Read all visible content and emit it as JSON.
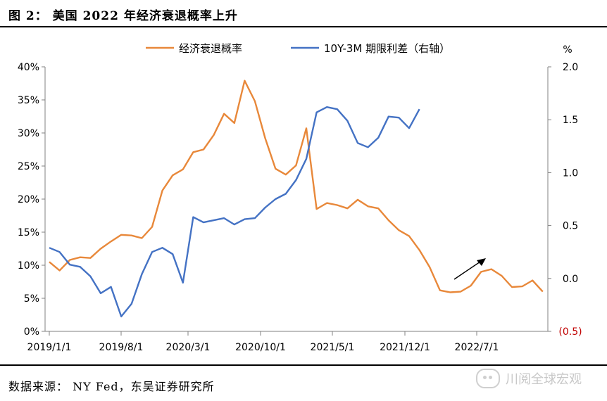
{
  "title": "图 2：  美国 2022 年经济衰退概率上升",
  "source": "数据来源：  NY Fed，东吴证券研究所",
  "watermark": "川阅全球宏观",
  "colors": {
    "recession": "#E8883A",
    "spread": "#4472C4",
    "negative_label": "#C00000"
  },
  "chart_data": {
    "type": "line",
    "x_ticks": [
      "2019/1/1",
      "2019/8/1",
      "2020/3/1",
      "2020/10/1",
      "2021/5/1",
      "2021/12/1",
      "2022/7/1"
    ],
    "left_axis": {
      "ylim": [
        0,
        40
      ],
      "ticks": [
        "0%",
        "5%",
        "10%",
        "15%",
        "20%",
        "25%",
        "30%",
        "35%",
        "40%"
      ]
    },
    "right_axis": {
      "unit": "%",
      "ylim": [
        -0.5,
        2.0
      ],
      "ticks": [
        "(0.5)",
        "0.0",
        "0.5",
        "1.0",
        "1.5",
        "2.0"
      ]
    },
    "legend": {
      "position": "top"
    },
    "series": [
      {
        "name": "经济衰退概率",
        "axis": "left",
        "values": [
          10.5,
          9.2,
          10.8,
          11.2,
          11.1,
          12.5,
          13.6,
          14.6,
          14.5,
          14.1,
          15.8,
          21.3,
          23.6,
          24.5,
          27.1,
          27.5,
          29.7,
          32.9,
          31.5,
          37.9,
          34.8,
          29.2,
          24.6,
          23.7,
          25.1,
          30.7,
          18.5,
          19.4,
          19.1,
          18.6,
          19.9,
          18.9,
          18.6,
          16.8,
          15.3,
          14.4,
          12.3,
          9.7,
          6.2,
          5.9,
          6.0,
          6.9,
          9.0,
          9.4,
          8.4,
          6.7,
          6.8,
          7.7,
          6.0
        ]
      },
      {
        "name": "10Y-3M 期限利差（右轴）",
        "axis": "right",
        "values": [
          0.29,
          0.25,
          0.13,
          0.11,
          0.02,
          -0.14,
          -0.08,
          -0.36,
          -0.24,
          0.04,
          0.25,
          0.29,
          0.23,
          -0.04,
          0.58,
          0.53,
          0.55,
          0.57,
          0.51,
          0.56,
          0.57,
          0.67,
          0.75,
          0.8,
          0.93,
          1.13,
          1.57,
          1.62,
          1.6,
          1.49,
          1.28,
          1.24,
          1.33,
          1.53,
          1.52,
          1.42,
          1.6
        ]
      }
    ],
    "annotations": [
      {
        "type": "arrow",
        "direction": "up-right"
      }
    ]
  }
}
